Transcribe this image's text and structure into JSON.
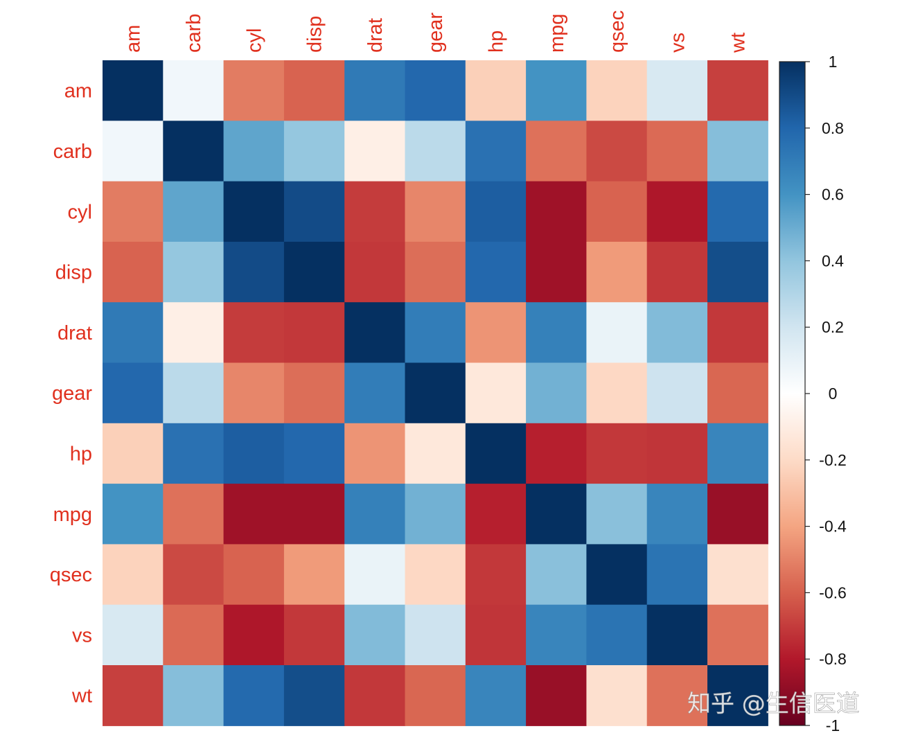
{
  "chart_data": {
    "type": "heatmap",
    "x_labels": [
      "am",
      "carb",
      "cyl",
      "disp",
      "drat",
      "gear",
      "hp",
      "mpg",
      "qsec",
      "vs",
      "wt"
    ],
    "y_labels": [
      "am",
      "carb",
      "cyl",
      "disp",
      "drat",
      "gear",
      "hp",
      "mpg",
      "qsec",
      "vs",
      "wt"
    ],
    "values": [
      [
        1.0,
        0.06,
        -0.52,
        -0.59,
        0.71,
        0.79,
        -0.24,
        0.6,
        -0.23,
        0.17,
        -0.69
      ],
      [
        0.06,
        1.0,
        0.53,
        0.39,
        -0.09,
        0.27,
        0.75,
        -0.55,
        -0.66,
        -0.57,
        0.43
      ],
      [
        -0.52,
        0.53,
        1.0,
        0.9,
        -0.7,
        -0.49,
        0.83,
        -0.85,
        -0.59,
        -0.81,
        0.78
      ],
      [
        -0.59,
        0.39,
        0.9,
        1.0,
        -0.71,
        -0.56,
        0.79,
        -0.85,
        -0.43,
        -0.71,
        0.89
      ],
      [
        0.71,
        -0.09,
        -0.7,
        -0.71,
        1.0,
        0.7,
        -0.45,
        0.68,
        0.09,
        0.44,
        -0.71
      ],
      [
        0.79,
        0.27,
        -0.49,
        -0.56,
        0.7,
        1.0,
        -0.13,
        0.48,
        -0.21,
        0.21,
        -0.58
      ],
      [
        -0.24,
        0.75,
        0.83,
        0.79,
        -0.45,
        -0.13,
        1.0,
        -0.78,
        -0.71,
        -0.72,
        0.66
      ],
      [
        0.6,
        -0.55,
        -0.85,
        -0.85,
        0.68,
        0.48,
        -0.78,
        1.0,
        0.42,
        0.66,
        -0.87
      ],
      [
        -0.23,
        -0.66,
        -0.59,
        -0.43,
        0.09,
        -0.21,
        -0.71,
        0.42,
        1.0,
        0.74,
        -0.17
      ],
      [
        0.17,
        -0.57,
        -0.81,
        -0.71,
        0.44,
        0.21,
        -0.72,
        0.66,
        0.74,
        1.0,
        -0.55
      ],
      [
        -0.69,
        0.43,
        0.78,
        0.89,
        -0.71,
        -0.58,
        0.66,
        -0.87,
        -0.17,
        -0.55,
        1.0
      ]
    ],
    "colorbar": {
      "min": -1,
      "max": 1,
      "ticks": [
        1,
        0.8,
        0.6,
        0.4,
        0.2,
        0,
        -0.2,
        -0.4,
        -0.6,
        -0.8,
        -1
      ],
      "tick_labels": [
        "1",
        "0.8",
        "0.6",
        "0.4",
        "0.2",
        "0",
        "-0.2",
        "-0.4",
        "-0.6",
        "-0.8",
        "-1"
      ],
      "colors": [
        "#67001f",
        "#b2182b",
        "#d6604d",
        "#f4a582",
        "#fddbc7",
        "#ffffff",
        "#d1e5f0",
        "#92c5de",
        "#4393c3",
        "#2166ac",
        "#053061"
      ]
    },
    "label_color": "#e0301e"
  },
  "watermark": "知乎 @生信医道"
}
